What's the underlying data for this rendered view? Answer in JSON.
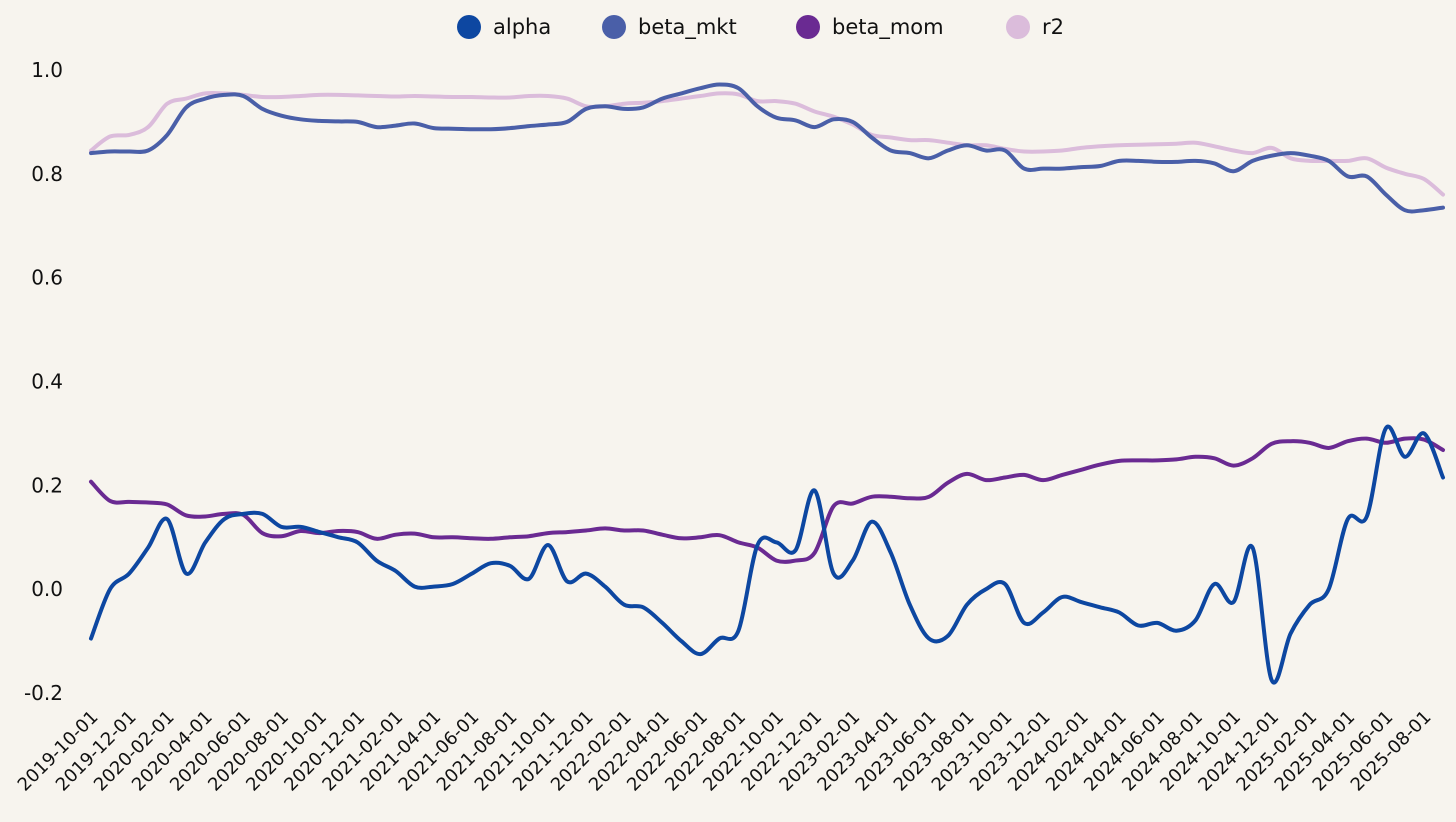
{
  "chart_data": {
    "type": "line",
    "title": "",
    "xlabel": "",
    "ylabel": "",
    "legend_position": "top-center",
    "grid": false,
    "ylim": [
      -0.2,
      1.0
    ],
    "yticks": [
      "1.0",
      "0.8",
      "0.6",
      "0.4",
      "0.2",
      "0.0",
      "-0.2"
    ],
    "xticks": [
      "2019-10-01",
      "2019-12-01",
      "2020-02-01",
      "2020-04-01",
      "2020-06-01",
      "2020-08-01",
      "2020-10-01",
      "2020-12-01",
      "2021-02-01",
      "2021-04-01",
      "2021-06-01",
      "2021-08-01",
      "2021-10-01",
      "2021-12-01",
      "2022-02-01",
      "2022-04-01",
      "2022-06-01",
      "2022-08-01",
      "2022-10-01",
      "2022-12-01",
      "2023-02-01",
      "2023-04-01",
      "2023-06-01",
      "2023-08-01",
      "2023-10-01",
      "2023-12-01",
      "2024-02-01",
      "2024-04-01",
      "2024-06-01",
      "2024-08-01",
      "2024-10-01",
      "2024-12-01",
      "2025-02-01",
      "2025-04-01",
      "2025-06-01",
      "2025-08-01"
    ],
    "x": [
      "2019-10-01",
      "2019-11-01",
      "2019-12-01",
      "2020-01-01",
      "2020-02-01",
      "2020-03-01",
      "2020-04-01",
      "2020-05-01",
      "2020-06-01",
      "2020-07-01",
      "2020-08-01",
      "2020-09-01",
      "2020-10-01",
      "2020-11-01",
      "2020-12-01",
      "2021-01-01",
      "2021-02-01",
      "2021-03-01",
      "2021-04-01",
      "2021-05-01",
      "2021-06-01",
      "2021-07-01",
      "2021-08-01",
      "2021-09-01",
      "2021-10-01",
      "2021-11-01",
      "2021-12-01",
      "2022-01-01",
      "2022-02-01",
      "2022-03-01",
      "2022-04-01",
      "2022-05-01",
      "2022-06-01",
      "2022-07-01",
      "2022-08-01",
      "2022-09-01",
      "2022-10-01",
      "2022-11-01",
      "2022-12-01",
      "2023-01-01",
      "2023-02-01",
      "2023-03-01",
      "2023-04-01",
      "2023-05-01",
      "2023-06-01",
      "2023-07-01",
      "2023-08-01",
      "2023-09-01",
      "2023-10-01",
      "2023-11-01",
      "2023-12-01",
      "2024-01-01",
      "2024-02-01",
      "2024-03-01",
      "2024-04-01",
      "2024-05-01",
      "2024-06-01",
      "2024-07-01",
      "2024-08-01",
      "2024-09-01",
      "2024-10-01",
      "2024-11-01",
      "2024-12-01",
      "2025-01-01",
      "2025-02-01",
      "2025-03-01",
      "2025-04-01",
      "2025-05-01",
      "2025-06-01",
      "2025-07-01",
      "2025-08-01",
      "2025-09-01"
    ],
    "series": [
      {
        "name": "alpha",
        "color": "#0d47a1",
        "values": [
          -0.095,
          0.0,
          0.03,
          0.08,
          0.135,
          0.03,
          0.09,
          0.135,
          0.145,
          0.145,
          0.12,
          0.12,
          0.11,
          0.1,
          0.09,
          0.055,
          0.035,
          0.005,
          0.005,
          0.01,
          0.03,
          0.05,
          0.045,
          0.02,
          0.085,
          0.015,
          0.03,
          0.005,
          -0.03,
          -0.035,
          -0.065,
          -0.1,
          -0.125,
          -0.095,
          -0.08,
          0.085,
          0.09,
          0.075,
          0.19,
          0.03,
          0.055,
          0.13,
          0.07,
          -0.03,
          -0.095,
          -0.09,
          -0.03,
          0.0,
          0.01,
          -0.065,
          -0.045,
          -0.015,
          -0.025,
          -0.035,
          -0.045,
          -0.07,
          -0.065,
          -0.08,
          -0.06,
          0.01,
          -0.025,
          0.08,
          -0.175,
          -0.085,
          -0.03,
          0.0,
          0.135,
          0.14,
          0.31,
          0.255,
          0.3,
          0.215
        ]
      },
      {
        "name": "beta_mkt",
        "color": "#4a5fa8",
        "values": [
          0.84,
          0.843,
          0.843,
          0.845,
          0.875,
          0.928,
          0.945,
          0.952,
          0.95,
          0.925,
          0.912,
          0.905,
          0.902,
          0.901,
          0.9,
          0.89,
          0.893,
          0.897,
          0.888,
          0.887,
          0.886,
          0.886,
          0.888,
          0.892,
          0.895,
          0.9,
          0.925,
          0.93,
          0.925,
          0.928,
          0.945,
          0.955,
          0.965,
          0.972,
          0.965,
          0.93,
          0.908,
          0.903,
          0.89,
          0.905,
          0.9,
          0.87,
          0.845,
          0.84,
          0.83,
          0.845,
          0.855,
          0.845,
          0.845,
          0.81,
          0.81,
          0.81,
          0.813,
          0.815,
          0.825,
          0.825,
          0.823,
          0.823,
          0.825,
          0.82,
          0.805,
          0.825,
          0.835,
          0.84,
          0.835,
          0.825,
          0.795,
          0.795,
          0.76,
          0.73,
          0.73,
          0.735
        ]
      },
      {
        "name": "beta_mom",
        "color": "#6a2a92",
        "values": [
          0.207,
          0.17,
          0.168,
          0.167,
          0.163,
          0.142,
          0.14,
          0.145,
          0.143,
          0.108,
          0.102,
          0.112,
          0.108,
          0.112,
          0.11,
          0.097,
          0.105,
          0.107,
          0.1,
          0.1,
          0.098,
          0.097,
          0.1,
          0.102,
          0.108,
          0.11,
          0.113,
          0.117,
          0.113,
          0.113,
          0.105,
          0.098,
          0.1,
          0.104,
          0.09,
          0.08,
          0.055,
          0.055,
          0.07,
          0.16,
          0.165,
          0.178,
          0.178,
          0.175,
          0.178,
          0.205,
          0.222,
          0.21,
          0.215,
          0.22,
          0.21,
          0.22,
          0.23,
          0.24,
          0.247,
          0.248,
          0.248,
          0.25,
          0.255,
          0.252,
          0.238,
          0.252,
          0.28,
          0.285,
          0.282,
          0.272,
          0.285,
          0.29,
          0.282,
          0.29,
          0.288,
          0.268
        ]
      },
      {
        "name": "r2",
        "color": "#dbbcdb",
        "values": [
          0.845,
          0.872,
          0.875,
          0.89,
          0.935,
          0.945,
          0.955,
          0.955,
          0.952,
          0.948,
          0.948,
          0.95,
          0.952,
          0.952,
          0.951,
          0.95,
          0.949,
          0.95,
          0.949,
          0.948,
          0.948,
          0.947,
          0.947,
          0.95,
          0.95,
          0.945,
          0.93,
          0.93,
          0.935,
          0.937,
          0.94,
          0.945,
          0.95,
          0.955,
          0.953,
          0.94,
          0.94,
          0.935,
          0.92,
          0.91,
          0.895,
          0.875,
          0.87,
          0.865,
          0.865,
          0.86,
          0.855,
          0.855,
          0.848,
          0.843,
          0.843,
          0.845,
          0.85,
          0.853,
          0.855,
          0.856,
          0.857,
          0.858,
          0.86,
          0.853,
          0.845,
          0.84,
          0.85,
          0.83,
          0.825,
          0.825,
          0.825,
          0.83,
          0.812,
          0.8,
          0.79,
          0.76
        ]
      }
    ]
  }
}
